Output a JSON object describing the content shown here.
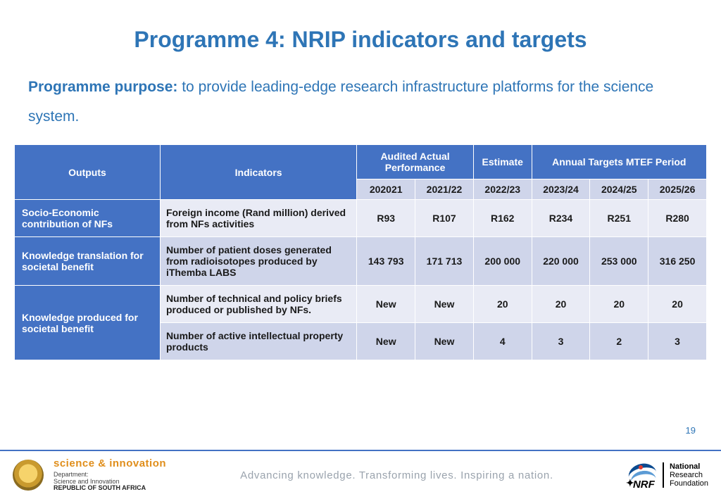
{
  "title": "Programme 4: NRIP indicators and targets",
  "purpose_label": "Programme purpose:",
  "purpose_text": " to provide leading-edge research infrastructure platforms for the science system.",
  "page_number": "19",
  "table": {
    "header_top": {
      "outputs": "Outputs",
      "indicators": "Indicators",
      "audited": "Audited Actual Performance",
      "estimate": "Estimate",
      "annual": "Annual Targets MTEF Period"
    },
    "years": [
      "202021",
      "2021/22",
      "2022/23",
      "2023/24",
      "2024/25",
      "2025/26"
    ],
    "rows": [
      {
        "output": "Socio-Economic contribution of NFs",
        "indicator": "Foreign income (Rand million) derived from NFs activities",
        "values": [
          "R93",
          "R107",
          "R162",
          "R234",
          "R251",
          "R280"
        ],
        "band": "a",
        "rowspan": 1
      },
      {
        "output": "Knowledge translation for societal benefit",
        "indicator": "Number of patient doses generated from radioisotopes produced by iThemba LABS",
        "values": [
          "143 793",
          "171 713",
          "200 000",
          "220 000",
          "253 000",
          "316 250"
        ],
        "band": "b",
        "rowspan": 1
      },
      {
        "output": "Knowledge produced for societal benefit",
        "indicator": "Number of technical and policy briefs produced or published by NFs.",
        "values": [
          "New",
          "New",
          "20",
          "20",
          "20",
          "20"
        ],
        "band": "a",
        "rowspan": 2
      },
      {
        "output": "",
        "indicator": "Number of active intellectual property products",
        "values": [
          "New",
          "New",
          "4",
          "3",
          "2",
          "3"
        ],
        "band": "b",
        "rowspan": 0
      }
    ],
    "colors": {
      "header_dark": "#4472c4",
      "header_light": "#cfd5ea",
      "band_a": "#e9ebf5",
      "band_b": "#cfd5ea",
      "title_color": "#2e75b6"
    }
  },
  "footer": {
    "dept_name": "science & innovation",
    "dept_sub1": "Department:",
    "dept_sub2": "Science and Innovation",
    "dept_rsa": "REPUBLIC OF SOUTH AFRICA",
    "tagline": "Advancing knowledge. Transforming lives. Inspiring a nation.",
    "nrf_abbr": "NRF",
    "nrf_line1": "National",
    "nrf_line2": "Research",
    "nrf_line3": "Foundation"
  }
}
